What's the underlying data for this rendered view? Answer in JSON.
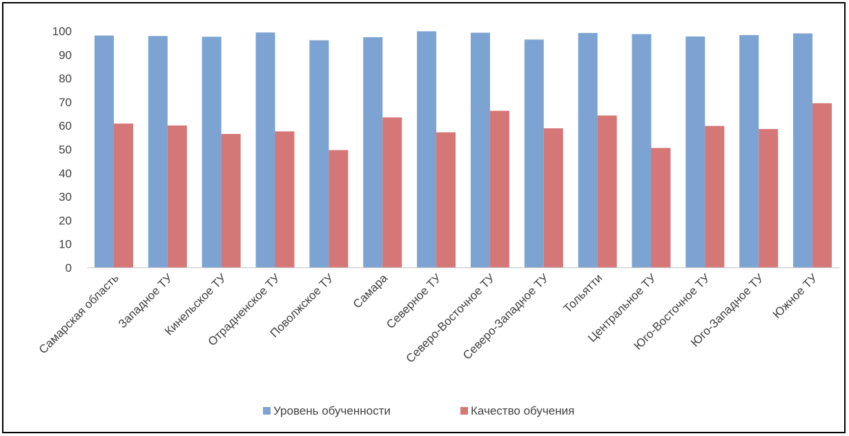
{
  "chart_data": {
    "type": "bar",
    "categories": [
      "Самарская область",
      "Западное ТУ",
      "Кинельское ТУ",
      "Отрадненское ТУ",
      "Поволжское ТУ",
      "Самара",
      "Северное ТУ",
      "Северо-Восточное ТУ",
      "Северо-Западное ТУ",
      "Тольятти",
      "Центральное ТУ",
      "Юго-Восточное ТУ",
      "Юго-Западное ТУ",
      "Южное ТУ"
    ],
    "series": [
      {
        "name": "Уровень обученности",
        "color": "#7ca3d2",
        "values": [
          98.1,
          97.9,
          97.6,
          99.4,
          96.1,
          97.4,
          99.9,
          99.3,
          96.4,
          99.2,
          98.7,
          97.7,
          98.3,
          99.0
        ]
      },
      {
        "name": "Качество обучения",
        "color": "#d67777",
        "values": [
          60.9,
          60.1,
          56.5,
          57.6,
          49.7,
          63.5,
          57.2,
          66.3,
          58.9,
          64.3,
          50.6,
          59.9,
          58.6,
          69.5
        ]
      }
    ],
    "yticks": [
      0,
      10,
      20,
      30,
      40,
      50,
      60,
      70,
      80,
      90,
      100
    ],
    "ylim": [
      0,
      100
    ],
    "grid": false,
    "legend_position": "bottom"
  }
}
